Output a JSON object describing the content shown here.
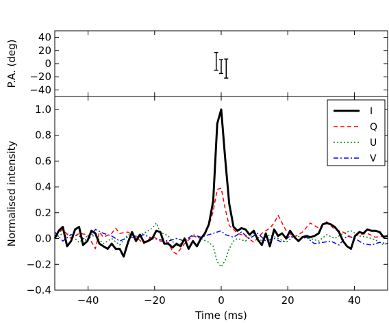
{
  "chart_data": [
    {
      "type": "scatter",
      "panel": "top",
      "ylabel": "P.A. (deg)",
      "ylim": [
        -50,
        50
      ],
      "yticks": [
        "40",
        "20",
        "0",
        "−20",
        "−40"
      ],
      "ytick_values": [
        40,
        20,
        0,
        -20,
        -40
      ],
      "xlim": [
        -50,
        50
      ],
      "points": [
        {
          "x": -1.5,
          "y": 3,
          "err_low": -10,
          "err_high": 17
        },
        {
          "x": 0,
          "y": -5,
          "err_low": -15,
          "err_high": 6
        },
        {
          "x": 1.5,
          "y": 0,
          "err_low": -22,
          "err_high": 7
        }
      ]
    },
    {
      "type": "line",
      "panel": "bottom",
      "xlabel": "Time (ms)",
      "ylabel": "Normalised intensity",
      "xlim": [
        -50,
        50
      ],
      "ylim": [
        -0.4,
        1.1
      ],
      "xticks": [
        "−40",
        "−20",
        "0",
        "20",
        "40"
      ],
      "xtick_values": [
        -40,
        -20,
        0,
        20,
        40
      ],
      "yticks": [
        "1.0",
        "0.8",
        "0.6",
        "0.4",
        "0.2",
        "0.0",
        "−0.2",
        "−0.4"
      ],
      "ytick_values": [
        1.0,
        0.8,
        0.6,
        0.4,
        0.2,
        0.0,
        -0.2,
        -0.4
      ],
      "legend_position": "top-right",
      "series": [
        {
          "name": "I",
          "color": "#000000",
          "style": "solid",
          "x": [
            -50,
            -48.8,
            -47.6,
            -46.3,
            -45.1,
            -43.9,
            -42.7,
            -41.5,
            -40.2,
            -39,
            -37.8,
            -36.6,
            -35.4,
            -34.1,
            -32.9,
            -31.7,
            -30.5,
            -29.3,
            -28,
            -26.8,
            -25.6,
            -24.4,
            -23.2,
            -22,
            -20.7,
            -19.5,
            -18.3,
            -17.1,
            -15.9,
            -14.6,
            -13.4,
            -12.2,
            -11,
            -9.8,
            -8.5,
            -7.3,
            -6.1,
            -4.9,
            -3.7,
            -2.4,
            -1.2,
            0,
            1.2,
            2.4,
            3.7,
            4.9,
            6.1,
            7.3,
            8.5,
            9.8,
            11,
            12.2,
            13.4,
            14.6,
            15.9,
            17.1,
            18.3,
            19.5,
            20.7,
            22,
            23.2,
            24.4,
            25.6,
            26.8,
            28,
            29.3,
            30.5,
            31.7,
            32.9,
            34.1,
            35.4,
            36.6,
            37.8,
            39,
            40.2,
            41.5,
            42.7,
            43.9,
            45.1,
            46.3,
            47.6,
            48.8,
            50
          ],
          "y": [
            0.0,
            0.06,
            0.09,
            -0.06,
            -0.02,
            0.07,
            0.09,
            -0.05,
            -0.02,
            0.06,
            0.04,
            -0.04,
            -0.06,
            -0.08,
            -0.04,
            -0.08,
            -0.08,
            -0.14,
            -0.03,
            0.05,
            -0.02,
            0.03,
            -0.03,
            -0.02,
            0.0,
            0.06,
            0.05,
            -0.04,
            -0.04,
            -0.07,
            -0.04,
            -0.06,
            0.0,
            -0.08,
            -0.02,
            -0.06,
            0.0,
            0.04,
            0.11,
            0.29,
            0.89,
            1.0,
            0.62,
            0.27,
            0.09,
            0.06,
            0.08,
            0.07,
            0.03,
            0.06,
            -0.01,
            -0.05,
            0.04,
            -0.06,
            0.07,
            0.02,
            0.04,
            0.0,
            0.06,
            0.01,
            -0.02,
            0.01,
            0.02,
            0.01,
            0.02,
            0.04,
            0.11,
            0.12,
            0.11,
            0.09,
            0.05,
            -0.02,
            -0.06,
            -0.08,
            0.02,
            0.05,
            0.04,
            0.07,
            0.06,
            0.06,
            0.05,
            0.01,
            0.02
          ]
        },
        {
          "name": "Q",
          "color": "#ff0000",
          "style": "dashed",
          "x": [
            -50,
            -47.6,
            -45.1,
            -42.7,
            -40.2,
            -37.8,
            -36.6,
            -35.4,
            -32.9,
            -31.7,
            -30.5,
            -28,
            -25.6,
            -23.2,
            -20.7,
            -18.3,
            -15.9,
            -14.6,
            -13.4,
            -11,
            -8.5,
            -6.1,
            -4.9,
            -3.7,
            -2.4,
            -1.2,
            0,
            1.2,
            2.4,
            3.7,
            4.9,
            7.3,
            9.8,
            12.2,
            14.6,
            15.9,
            17.1,
            19.5,
            22,
            24.4,
            26.8,
            29.3,
            31.7,
            34.1,
            36.6,
            39,
            41.5,
            43.9,
            46.3,
            48.8,
            50
          ],
          "y": [
            0.02,
            0.07,
            0.0,
            0.04,
            0.03,
            -0.08,
            0.05,
            0.01,
            0.04,
            0.08,
            0.04,
            0.05,
            0.01,
            -0.04,
            0.02,
            -0.02,
            -0.03,
            -0.1,
            -0.12,
            -0.04,
            0.02,
            0.0,
            0.03,
            0.1,
            0.21,
            0.38,
            0.39,
            0.23,
            0.1,
            0.07,
            0.04,
            0.02,
            -0.03,
            0.04,
            0.08,
            0.12,
            0.18,
            0.06,
            0.01,
            0.05,
            0.12,
            0.08,
            0.13,
            0.07,
            0.05,
            0.01,
            0.03,
            0.04,
            0.01,
            0.02,
            0.03
          ]
        },
        {
          "name": "U",
          "color": "#008000",
          "style": "dotted",
          "x": [
            -50,
            -47.6,
            -45.1,
            -42.7,
            -40.2,
            -37.8,
            -35.4,
            -32.9,
            -30.5,
            -28,
            -25.6,
            -23.2,
            -20.7,
            -19.5,
            -18.3,
            -15.9,
            -13.4,
            -11,
            -8.5,
            -6.1,
            -3.7,
            -2.4,
            -1.2,
            0,
            1.2,
            2.4,
            3.7,
            4.9,
            7.3,
            9.8,
            12.2,
            14.6,
            17.1,
            19.5,
            22,
            24.4,
            26.8,
            29.3,
            31.7,
            34.1,
            36.6,
            39,
            41.5,
            43.9,
            46.3,
            48.8,
            50
          ],
          "y": [
            0.0,
            0.04,
            0.03,
            -0.03,
            0.02,
            0.02,
            -0.04,
            0.0,
            -0.05,
            0.03,
            0.02,
            0.04,
            0.08,
            0.12,
            0.05,
            0.02,
            -0.06,
            -0.02,
            0.02,
            0.0,
            -0.03,
            -0.06,
            -0.18,
            -0.22,
            -0.17,
            -0.08,
            -0.02,
            0.0,
            -0.02,
            0.04,
            -0.02,
            0.03,
            0.0,
            -0.03,
            0.02,
            0.01,
            0.0,
            -0.02,
            0.03,
            0.0,
            0.04,
            0.06,
            0.02,
            0.01,
            -0.01,
            -0.05,
            -0.03
          ]
        },
        {
          "name": "V",
          "color": "#0000ff",
          "style": "dashdot",
          "x": [
            -50,
            -47.6,
            -45.1,
            -42.7,
            -40.2,
            -37.8,
            -35.4,
            -32.9,
            -30.5,
            -28,
            -25.6,
            -23.2,
            -20.7,
            -18.3,
            -15.9,
            -13.4,
            -11,
            -8.5,
            -6.1,
            -3.7,
            -1.2,
            0,
            1.2,
            3.7,
            6.1,
            8.5,
            11,
            13.4,
            15.9,
            18.3,
            20.7,
            23.2,
            25.6,
            28,
            30.5,
            32.9,
            35.4,
            37.8,
            40.2,
            42.7,
            45.1,
            47.6,
            50
          ],
          "y": [
            0.05,
            -0.02,
            0.03,
            0.02,
            -0.02,
            0.07,
            0.04,
            0.02,
            -0.02,
            0.01,
            0.01,
            0.03,
            0.0,
            -0.01,
            -0.02,
            0.0,
            -0.02,
            0.03,
            0.01,
            0.03,
            0.05,
            0.06,
            0.03,
            0.01,
            0.05,
            0.0,
            0.04,
            -0.02,
            0.0,
            -0.03,
            0.02,
            -0.01,
            0.01,
            -0.04,
            -0.03,
            -0.02,
            -0.05,
            0.02,
            0.0,
            -0.04,
            -0.05,
            -0.03,
            -0.04
          ]
        }
      ]
    }
  ]
}
